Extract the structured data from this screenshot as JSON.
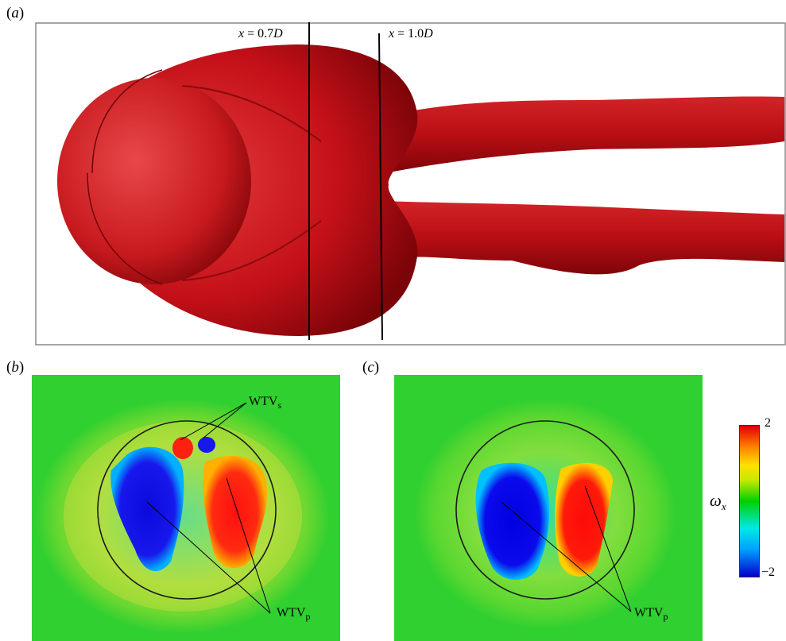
{
  "panels": {
    "a": {
      "label": "a",
      "x_labels": [
        "x = 0.7D",
        "x = 1.0D"
      ]
    },
    "b": {
      "label": "b",
      "annotations": {
        "wtv_s": "WTVs",
        "wtv_p": "WTVp"
      }
    },
    "c": {
      "label": "c",
      "annotations": {
        "wtv_p": "WTVp"
      }
    }
  },
  "colorbar": {
    "variable": "ω",
    "variable_sub": "x",
    "max_label": "2",
    "min_label": "−2",
    "colors": [
      "#0000c8",
      "#00a0ff",
      "#00e8e8",
      "#00d000",
      "#c8e800",
      "#ffe000",
      "#ff8000",
      "#e00000"
    ]
  },
  "colors": {
    "isosurface": "#c41018",
    "background_field": "#30d030",
    "positive": "#ff1010",
    "negative": "#1010e0"
  }
}
